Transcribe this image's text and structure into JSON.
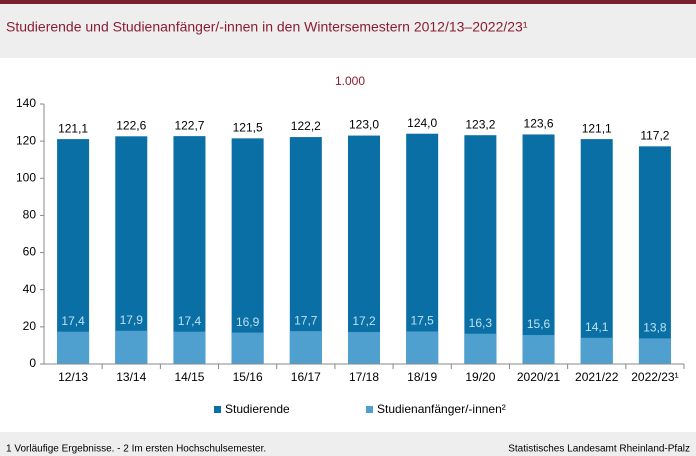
{
  "chart_data": {
    "type": "bar",
    "barmode": "overlay",
    "title": "Studierende und Studienanfänger/-innen in den Wintersemestern 2012/13–2022/23¹",
    "unit_label": "1.000",
    "categories": [
      "12/13",
      "13/14",
      "14/15",
      "15/16",
      "16/17",
      "17/18",
      "18/19",
      "19/20",
      "2020/21",
      "2021/22",
      "2022/23¹"
    ],
    "series": [
      {
        "name": "Studierende",
        "color": "#0a6fa5",
        "values": [
          121.1,
          122.6,
          122.7,
          121.5,
          122.2,
          123.0,
          124.0,
          123.2,
          123.6,
          121.1,
          117.2
        ],
        "value_labels": [
          "121,1",
          "122,6",
          "122,7",
          "121,5",
          "122,2",
          "123,0",
          "124,0",
          "123,2",
          "123,6",
          "121,1",
          "117,2"
        ]
      },
      {
        "name": "Studienanfänger/-innen²",
        "color": "#4fa0cf",
        "values": [
          17.4,
          17.9,
          17.4,
          16.9,
          17.7,
          17.2,
          17.5,
          16.3,
          15.6,
          14.1,
          13.8
        ],
        "value_labels": [
          "17,4",
          "17,9",
          "17,4",
          "16,9",
          "17,7",
          "17,2",
          "17,5",
          "16,3",
          "15,6",
          "14,1",
          "13,8"
        ]
      }
    ],
    "ylim": [
      0,
      140
    ],
    "yticks": [
      0,
      20,
      40,
      60,
      80,
      100,
      120,
      140
    ],
    "grid": false,
    "legend": "bottom"
  },
  "footnote": "1 Vorläufige Ergebnisse. - 2 Im ersten Hochschulsemester.",
  "source": "Statistisches Landesamt Rheinland-Pfalz"
}
